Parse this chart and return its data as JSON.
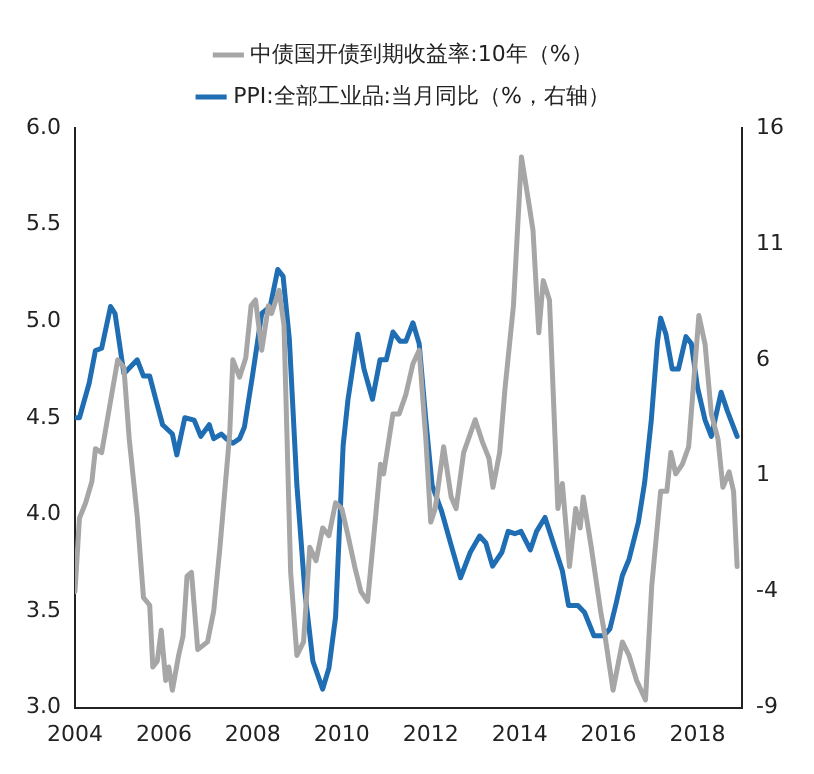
{
  "chart_data": {
    "type": "line",
    "legend": "top",
    "marker": "none",
    "line_style": "solid",
    "xlim": [
      2004,
      2019
    ],
    "xticks": [
      2004,
      2006,
      2008,
      2010,
      2012,
      2014,
      2016,
      2018
    ],
    "ylim": [
      3.0,
      6.0
    ],
    "yticks": [
      {
        "value": 3.0,
        "label": "3.0"
      },
      {
        "value": 3.5,
        "label": "3.5"
      },
      {
        "value": 4.0,
        "label": "4.0"
      },
      {
        "value": 4.5,
        "label": "4.5"
      },
      {
        "value": 5.0,
        "label": "5.0"
      },
      {
        "value": 5.5,
        "label": "5.5"
      },
      {
        "value": 6.0,
        "label": "6.0"
      }
    ],
    "y2lim": [
      -9,
      16
    ],
    "y2ticks": [
      -9,
      -4,
      1,
      6,
      11,
      16
    ],
    "series": [
      {
        "name": "中债国开债到期收益率:10年（%）",
        "color": "#a6a6a6",
        "x": [
          2004.0,
          2004.1,
          2004.24,
          2004.38,
          2004.46,
          2004.6,
          2004.75,
          2004.96,
          2005.1,
          2005.22,
          2005.4,
          2005.54,
          2005.68,
          2005.75,
          2005.85,
          2005.94,
          2006.04,
          2006.11,
          2006.19,
          2006.33,
          2006.43,
          2006.52,
          2006.62,
          2006.76,
          2006.98,
          2007.12,
          2007.26,
          2007.48,
          2007.55,
          2007.7,
          2007.84,
          2007.96,
          2008.06,
          2008.2,
          2008.35,
          2008.42,
          2008.59,
          2008.7,
          2008.85,
          2008.99,
          2009.14,
          2009.28,
          2009.42,
          2009.57,
          2009.71,
          2009.86,
          2010.0,
          2010.14,
          2010.29,
          2010.43,
          2010.58,
          2010.72,
          2010.87,
          2010.94,
          2011.15,
          2011.29,
          2011.44,
          2011.6,
          2011.74,
          2011.89,
          2012.0,
          2012.1,
          2012.29,
          2012.46,
          2012.57,
          2012.74,
          2013.0,
          2013.17,
          2013.31,
          2013.4,
          2013.55,
          2013.67,
          2013.86,
          2014.04,
          2014.22,
          2014.3,
          2014.43,
          2014.53,
          2014.67,
          2014.86,
          2014.96,
          2015.12,
          2015.26,
          2015.36,
          2015.43,
          2015.61,
          2015.82,
          2015.92,
          2016.1,
          2016.31,
          2016.46,
          2016.63,
          2016.83,
          2016.97,
          2017.17,
          2017.31,
          2017.4,
          2017.51,
          2017.66,
          2017.8,
          2018.03,
          2018.17,
          2018.31,
          2018.46,
          2018.57,
          2018.71,
          2018.81,
          2018.89
        ],
        "values": [
          3.6,
          3.98,
          4.06,
          4.17,
          4.34,
          4.32,
          4.52,
          4.8,
          4.76,
          4.39,
          3.99,
          3.57,
          3.53,
          3.21,
          3.24,
          3.4,
          3.14,
          3.21,
          3.09,
          3.27,
          3.37,
          3.68,
          3.7,
          3.3,
          3.34,
          3.5,
          3.83,
          4.42,
          4.8,
          4.71,
          4.81,
          5.08,
          5.11,
          4.85,
          5.08,
          5.04,
          5.16,
          4.98,
          3.7,
          3.27,
          3.34,
          3.83,
          3.76,
          3.93,
          3.89,
          4.06,
          4.03,
          3.89,
          3.73,
          3.6,
          3.55,
          3.89,
          4.26,
          4.21,
          4.52,
          4.52,
          4.62,
          4.78,
          4.85,
          4.39,
          3.96,
          4.03,
          4.35,
          4.09,
          4.03,
          4.32,
          4.49,
          4.37,
          4.29,
          4.14,
          4.32,
          4.65,
          5.08,
          5.85,
          5.59,
          5.47,
          4.94,
          5.21,
          5.11,
          4.03,
          4.16,
          3.73,
          4.03,
          3.93,
          4.09,
          3.83,
          3.5,
          3.37,
          3.09,
          3.34,
          3.27,
          3.14,
          3.04,
          3.63,
          4.12,
          4.12,
          4.32,
          4.21,
          4.26,
          4.35,
          5.03,
          4.88,
          4.52,
          4.39,
          4.14,
          4.22,
          4.12,
          3.73
        ]
      },
      {
        "name": "PPI:全部工业品:当月同比（%，右轴）",
        "color": "#1f6db3",
        "axis": "y2",
        "x": [
          2004.0,
          2004.1,
          2004.32,
          2004.46,
          2004.6,
          2004.8,
          2004.9,
          2005.1,
          2005.25,
          2005.4,
          2005.54,
          2005.68,
          2005.83,
          2005.97,
          2006.19,
          2006.29,
          2006.47,
          2006.68,
          2006.83,
          2007.02,
          2007.12,
          2007.29,
          2007.4,
          2007.55,
          2007.7,
          2007.81,
          2007.99,
          2008.2,
          2008.39,
          2008.56,
          2008.68,
          2008.82,
          2008.99,
          2009.17,
          2009.35,
          2009.57,
          2009.71,
          2009.86,
          2010.03,
          2010.14,
          2010.36,
          2010.5,
          2010.69,
          2010.86,
          2011.0,
          2011.15,
          2011.31,
          2011.44,
          2011.6,
          2011.74,
          2011.89,
          2012.03,
          2012.24,
          2012.46,
          2012.67,
          2012.89,
          2013.1,
          2013.24,
          2013.39,
          2013.6,
          2013.74,
          2013.89,
          2014.03,
          2014.24,
          2014.38,
          2014.57,
          2014.74,
          2014.96,
          2015.1,
          2015.31,
          2015.46,
          2015.67,
          2015.89,
          2016.03,
          2016.17,
          2016.31,
          2016.46,
          2016.67,
          2016.81,
          2016.96,
          2017.1,
          2017.17,
          2017.29,
          2017.43,
          2017.57,
          2017.74,
          2017.86,
          2018.0,
          2018.17,
          2018.31,
          2018.53,
          2018.67,
          2018.81,
          2018.89
        ],
        "values": [
          3.5,
          3.5,
          5.0,
          6.4,
          6.5,
          8.3,
          8.0,
          5.4,
          5.7,
          6.0,
          5.3,
          5.3,
          4.2,
          3.2,
          2.8,
          1.9,
          3.5,
          3.4,
          2.7,
          3.2,
          2.6,
          2.8,
          2.6,
          2.4,
          2.6,
          3.1,
          5.3,
          8.0,
          8.3,
          9.9,
          9.6,
          6.9,
          0.6,
          -4.0,
          -7.0,
          -8.2,
          -7.3,
          -5.1,
          2.3,
          4.3,
          7.1,
          5.6,
          4.3,
          6.0,
          6.0,
          7.2,
          6.8,
          6.8,
          7.6,
          6.7,
          3.4,
          0.6,
          -0.5,
          -2.0,
          -3.4,
          -2.3,
          -1.6,
          -1.9,
          -2.9,
          -2.3,
          -1.4,
          -1.5,
          -1.4,
          -2.2,
          -1.4,
          -0.8,
          -1.8,
          -3.1,
          -4.6,
          -4.6,
          -4.9,
          -5.9,
          -5.9,
          -5.6,
          -4.5,
          -3.3,
          -2.6,
          -1.0,
          0.7,
          3.4,
          6.8,
          7.8,
          7.1,
          5.6,
          5.6,
          7.0,
          6.7,
          4.8,
          3.4,
          2.7,
          4.6,
          3.8,
          3.1,
          2.7
        ]
      }
    ]
  }
}
